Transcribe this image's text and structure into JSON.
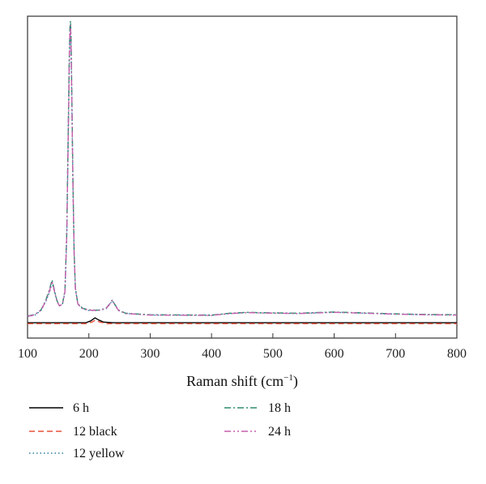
{
  "chart_data": {
    "type": "line",
    "xlabel": "Raman shift (cm",
    "xlabel_sup": "−1",
    "xlabel_close": ")",
    "ylabel": "",
    "xlim": [
      100,
      800
    ],
    "ylim": [
      -0.05,
      1.0
    ],
    "xticks": [
      100,
      200,
      300,
      400,
      500,
      600,
      700,
      800
    ],
    "y_tick_labels": false,
    "grid": false,
    "legend_position": "bottom",
    "series": [
      {
        "name": "6 h",
        "color": "#000000",
        "dash": "solid",
        "points": [
          [
            100,
            0.0
          ],
          [
            195,
            0.0
          ],
          [
            203,
            0.006
          ],
          [
            210,
            0.016
          ],
          [
            216,
            0.009
          ],
          [
            224,
            0.002
          ],
          [
            240,
            0.0
          ],
          [
            800,
            0.0
          ]
        ]
      },
      {
        "name": "12 black",
        "color": "#e8503a",
        "dash": "dashed",
        "points": [
          [
            100,
            -0.003
          ],
          [
            195,
            -0.003
          ],
          [
            205,
            0.002
          ],
          [
            210,
            0.008
          ],
          [
            218,
            0.002
          ],
          [
            230,
            -0.003
          ],
          [
            800,
            -0.003
          ]
        ]
      },
      {
        "name": "12 yellow",
        "color": "#2f7fa3",
        "dash": "dotted",
        "points": [
          [
            100,
            0.02
          ],
          [
            112,
            0.025
          ],
          [
            122,
            0.04
          ],
          [
            130,
            0.07
          ],
          [
            136,
            0.1
          ],
          [
            140,
            0.13
          ],
          [
            144,
            0.1
          ],
          [
            148,
            0.07
          ],
          [
            152,
            0.055
          ],
          [
            157,
            0.06
          ],
          [
            161,
            0.1
          ],
          [
            164,
            0.28
          ],
          [
            166,
            0.55
          ],
          [
            168,
            0.82
          ],
          [
            169,
            0.92
          ],
          [
            170,
            0.95
          ],
          [
            171,
            0.9
          ],
          [
            172,
            0.75
          ],
          [
            174,
            0.45
          ],
          [
            176,
            0.22
          ],
          [
            178,
            0.11
          ],
          [
            182,
            0.06
          ],
          [
            190,
            0.045
          ],
          [
            200,
            0.04
          ],
          [
            215,
            0.04
          ],
          [
            228,
            0.045
          ],
          [
            234,
            0.06
          ],
          [
            238,
            0.072
          ],
          [
            242,
            0.06
          ],
          [
            248,
            0.04
          ],
          [
            260,
            0.03
          ],
          [
            300,
            0.025
          ],
          [
            400,
            0.024
          ],
          [
            430,
            0.03
          ],
          [
            460,
            0.033
          ],
          [
            480,
            0.032
          ],
          [
            540,
            0.03
          ],
          [
            600,
            0.034
          ],
          [
            650,
            0.031
          ],
          [
            700,
            0.028
          ],
          [
            750,
            0.026
          ],
          [
            800,
            0.025
          ]
        ]
      },
      {
        "name": "18 h",
        "color": "#2e8c6e",
        "dash": "dashdot",
        "points": [
          [
            100,
            0.022
          ],
          [
            112,
            0.027
          ],
          [
            122,
            0.042
          ],
          [
            130,
            0.075
          ],
          [
            136,
            0.11
          ],
          [
            140,
            0.14
          ],
          [
            144,
            0.105
          ],
          [
            148,
            0.072
          ],
          [
            152,
            0.056
          ],
          [
            157,
            0.062
          ],
          [
            161,
            0.105
          ],
          [
            164,
            0.3
          ],
          [
            166,
            0.58
          ],
          [
            168,
            0.86
          ],
          [
            169,
            0.96
          ],
          [
            170,
            0.985
          ],
          [
            171,
            0.93
          ],
          [
            172,
            0.78
          ],
          [
            174,
            0.47
          ],
          [
            176,
            0.23
          ],
          [
            178,
            0.115
          ],
          [
            182,
            0.062
          ],
          [
            190,
            0.047
          ],
          [
            200,
            0.042
          ],
          [
            215,
            0.041
          ],
          [
            228,
            0.047
          ],
          [
            234,
            0.062
          ],
          [
            238,
            0.074
          ],
          [
            242,
            0.061
          ],
          [
            248,
            0.042
          ],
          [
            260,
            0.031
          ],
          [
            300,
            0.026
          ],
          [
            400,
            0.025
          ],
          [
            430,
            0.031
          ],
          [
            460,
            0.034
          ],
          [
            480,
            0.033
          ],
          [
            540,
            0.031
          ],
          [
            600,
            0.035
          ],
          [
            650,
            0.032
          ],
          [
            700,
            0.029
          ],
          [
            750,
            0.027
          ],
          [
            800,
            0.026
          ]
        ]
      },
      {
        "name": "24 h",
        "color": "#c75fae",
        "dash": "dashdotdot",
        "points": [
          [
            100,
            0.021
          ],
          [
            112,
            0.026
          ],
          [
            122,
            0.041
          ],
          [
            130,
            0.072
          ],
          [
            136,
            0.105
          ],
          [
            140,
            0.135
          ],
          [
            144,
            0.102
          ],
          [
            148,
            0.07
          ],
          [
            152,
            0.055
          ],
          [
            157,
            0.061
          ],
          [
            161,
            0.102
          ],
          [
            164,
            0.29
          ],
          [
            166,
            0.56
          ],
          [
            168,
            0.84
          ],
          [
            169,
            0.94
          ],
          [
            170,
            0.97
          ],
          [
            171,
            0.91
          ],
          [
            172,
            0.76
          ],
          [
            174,
            0.46
          ],
          [
            176,
            0.225
          ],
          [
            178,
            0.112
          ],
          [
            182,
            0.061
          ],
          [
            190,
            0.046
          ],
          [
            200,
            0.041
          ],
          [
            215,
            0.04
          ],
          [
            228,
            0.046
          ],
          [
            234,
            0.061
          ],
          [
            238,
            0.073
          ],
          [
            242,
            0.06
          ],
          [
            248,
            0.041
          ],
          [
            260,
            0.03
          ],
          [
            300,
            0.025
          ],
          [
            400,
            0.024
          ],
          [
            430,
            0.03
          ],
          [
            460,
            0.033
          ],
          [
            480,
            0.032
          ],
          [
            540,
            0.03
          ],
          [
            600,
            0.034
          ],
          [
            650,
            0.031
          ],
          [
            700,
            0.028
          ],
          [
            750,
            0.026
          ],
          [
            800,
            0.025
          ]
        ]
      }
    ]
  }
}
